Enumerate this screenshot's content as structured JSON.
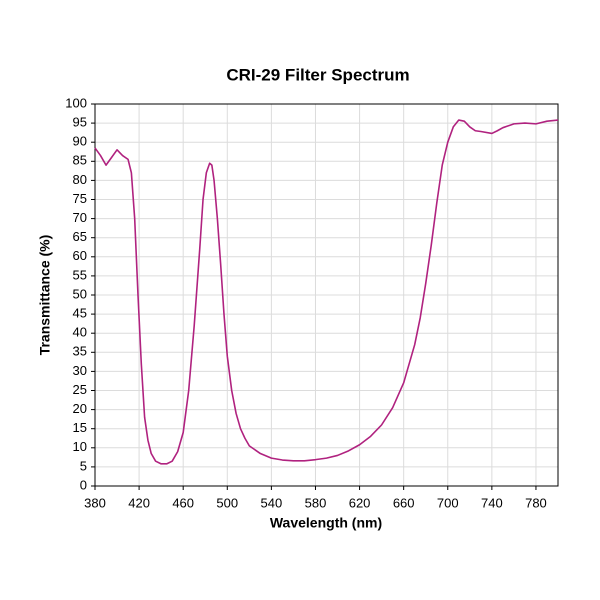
{
  "chart_data": {
    "type": "line",
    "title": "CRI-29 Filter Spectrum",
    "x_label": "Wavelength (nm)",
    "y_label": "Transmittance (%)",
    "xlim": [
      380,
      800
    ],
    "xticks": [
      380,
      420,
      460,
      500,
      540,
      580,
      620,
      660,
      700,
      740,
      780
    ],
    "ylim": [
      0,
      100
    ],
    "yticks": [
      0,
      5,
      10,
      15,
      20,
      25,
      30,
      35,
      40,
      45,
      50,
      55,
      60,
      65,
      70,
      75,
      80,
      85,
      90,
      95,
      100
    ],
    "grid": true,
    "series": [
      {
        "color": "#b0227f",
        "x": [
          380,
          385,
          390,
          395,
          400,
          405,
          410,
          413,
          416,
          419,
          422,
          425,
          428,
          431,
          435,
          440,
          445,
          450,
          455,
          460,
          465,
          470,
          475,
          478,
          481,
          484,
          486,
          488,
          491,
          494,
          497,
          500,
          504,
          508,
          512,
          516,
          520,
          530,
          540,
          550,
          560,
          570,
          580,
          590,
          600,
          610,
          620,
          630,
          640,
          650,
          660,
          670,
          675,
          680,
          685,
          690,
          695,
          700,
          705,
          710,
          715,
          720,
          725,
          730,
          740,
          745,
          750,
          760,
          770,
          780,
          790,
          800
        ],
        "values": [
          88.5,
          86.5,
          84,
          86,
          88,
          86.5,
          85.5,
          82,
          70,
          50,
          32,
          18,
          12,
          8.5,
          6.5,
          5.8,
          5.8,
          6.5,
          9,
          14,
          25,
          42,
          62,
          75,
          82,
          84.5,
          84,
          80,
          70,
          58,
          45,
          34,
          25,
          19,
          15,
          12.5,
          10.5,
          8.5,
          7.3,
          6.8,
          6.6,
          6.6,
          6.9,
          7.3,
          8,
          9.2,
          10.8,
          13,
          16,
          20.5,
          27,
          37,
          44,
          53,
          63,
          74,
          84,
          90,
          94,
          95.8,
          95.5,
          94,
          93,
          92.8,
          92.3,
          93,
          93.8,
          94.8,
          95,
          94.8,
          95.5,
          95.8
        ]
      }
    ]
  }
}
